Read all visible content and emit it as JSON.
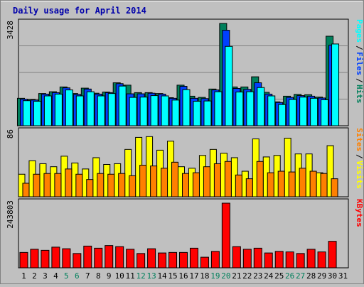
{
  "chart_data": {
    "type": "bar",
    "title": "Daily usage for April 2014",
    "categories": [
      "1",
      "2",
      "3",
      "4",
      "5",
      "6",
      "7",
      "8",
      "9",
      "10",
      "11",
      "12",
      "13",
      "14",
      "15",
      "16",
      "17",
      "18",
      "19",
      "20",
      "21",
      "22",
      "23",
      "24",
      "25",
      "26",
      "27",
      "28",
      "29",
      "30",
      "31"
    ],
    "weekend_days": [
      "5",
      "6",
      "12",
      "13",
      "19",
      "20",
      "26",
      "27"
    ],
    "panels": [
      {
        "id": "hits",
        "max_label": "3428",
        "ymax": 3428,
        "series": [
          {
            "name": "Hits",
            "color": "#00805c",
            "values": [
              920,
              880,
              1080,
              1140,
              1300,
              1080,
              1260,
              1090,
              1130,
              1440,
              1360,
              1110,
              1110,
              1080,
              940,
              1360,
              990,
              950,
              1230,
              3428,
              1300,
              1300,
              1640,
              1120,
              800,
              990,
              1050,
              1040,
              960,
              3000,
              0
            ]
          },
          {
            "name": "Files",
            "color": "#0040ff",
            "values": [
              890,
              860,
              1060,
              1110,
              1270,
              1050,
              1230,
              1060,
              1110,
              1410,
              1070,
              1070,
              1090,
              1060,
              920,
              1320,
              920,
              910,
              1200,
              3200,
              1250,
              1220,
              1440,
              1060,
              780,
              950,
              1010,
              990,
              930,
              2700,
              0
            ]
          },
          {
            "name": "Pages",
            "color": "#00ffff",
            "values": [
              840,
              820,
              1000,
              1060,
              1200,
              1000,
              1140,
              1000,
              1080,
              1330,
              950,
              960,
              1010,
              1000,
              860,
              1210,
              820,
              830,
              1140,
              2660,
              1130,
              1140,
              1280,
              1000,
              710,
              880,
              960,
              920,
              870,
              2740,
              0
            ]
          }
        ]
      },
      {
        "id": "visits",
        "max_label": "86",
        "ymax": 86,
        "series": [
          {
            "name": "Visits",
            "color": "#ffff00",
            "values": [
              30,
              48,
              44,
              40,
              54,
              45,
              37,
              52,
              43,
              44,
              63,
              79,
              80,
              62,
              74,
              40,
              38,
              55,
              63,
              58,
              52,
              34,
              77,
              53,
              55,
              78,
              57,
              57,
              32,
              68,
              0
            ]
          },
          {
            "name": "Sites",
            "color": "#ff8000",
            "values": [
              18,
              30,
              31,
              31,
              37,
              30,
              23,
              31,
              30,
              31,
              28,
              42,
              41,
              38,
              46,
              31,
              32,
              40,
              44,
              47,
              29,
              24,
              47,
              32,
              34,
              33,
              38,
              34,
              31,
              24,
              0
            ]
          }
        ]
      },
      {
        "id": "kbytes",
        "max_label": "243803",
        "ymax": 243803,
        "series": [
          {
            "name": "KBytes",
            "color": "#ff0000",
            "values": [
              58000,
              70000,
              66000,
              78000,
              72000,
              54000,
              82000,
              74000,
              84000,
              80000,
              70000,
              54000,
              72000,
              56000,
              58000,
              58000,
              74000,
              40000,
              62000,
              243803,
              80000,
              70000,
              74000,
              56000,
              62000,
              60000,
              54000,
              70000,
              60000,
              100000,
              0
            ]
          }
        ]
      }
    ]
  }
}
